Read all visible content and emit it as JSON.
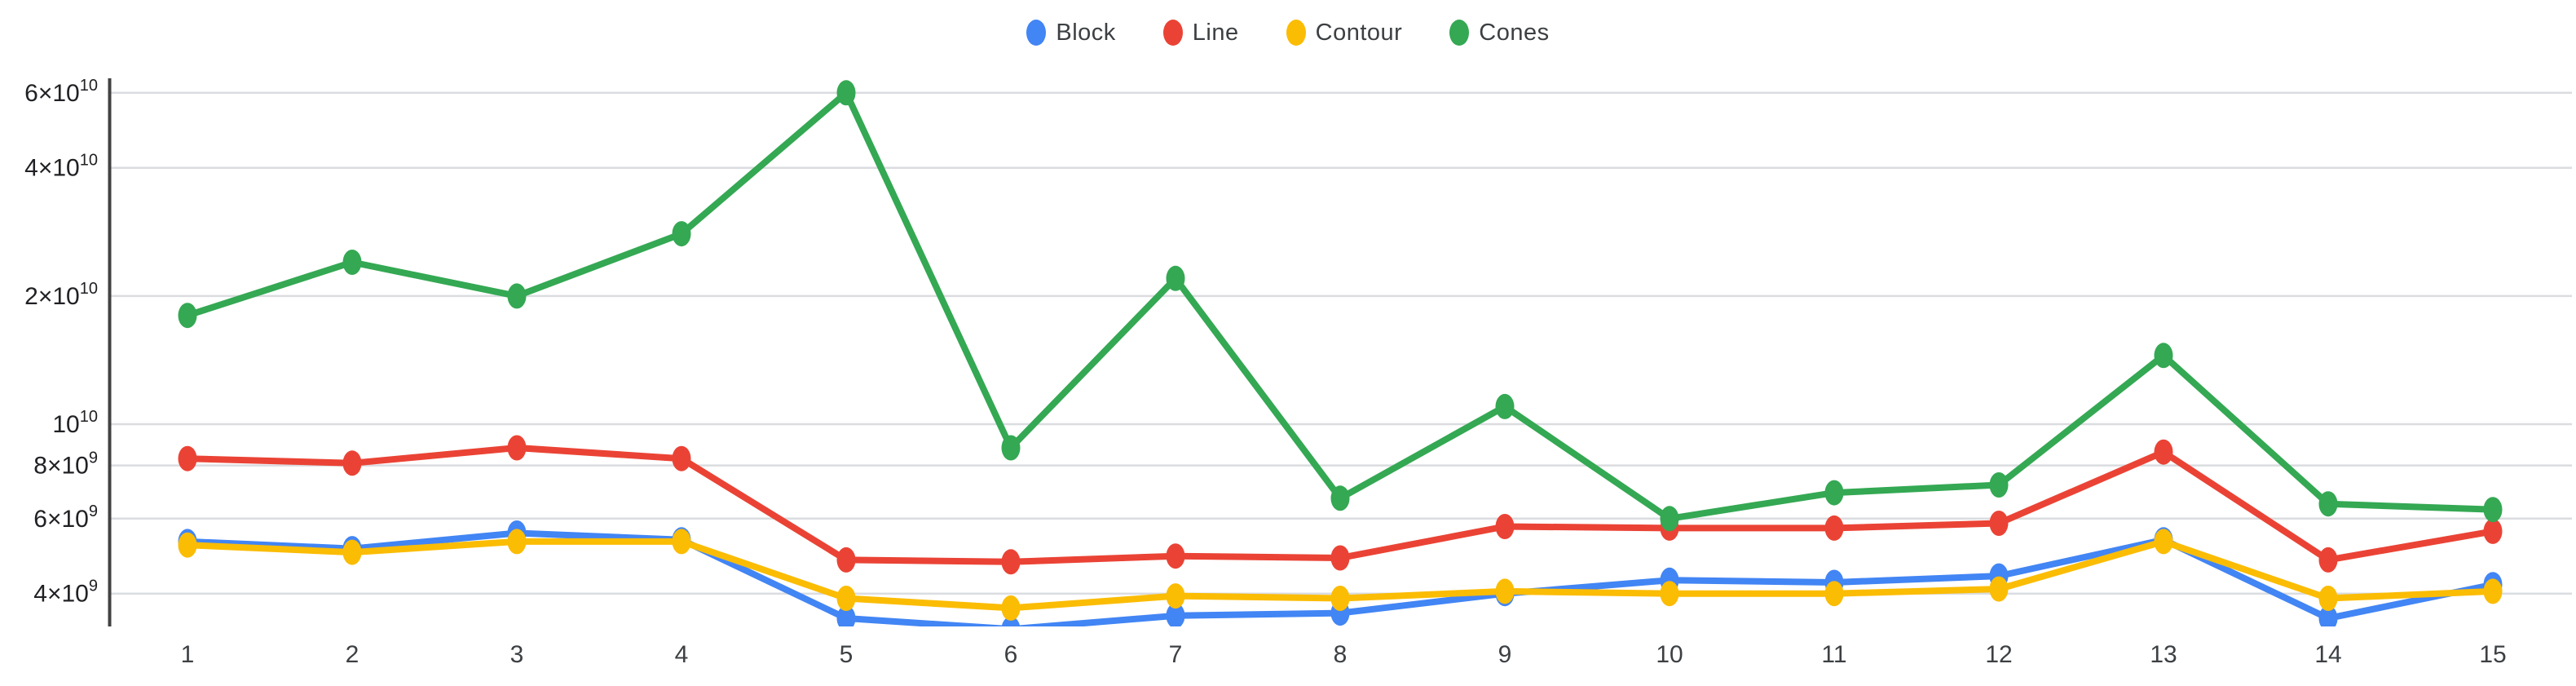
{
  "chart_data": {
    "type": "line",
    "title": "",
    "xlabel": "",
    "ylabel": "",
    "x": [
      1,
      2,
      3,
      4,
      5,
      6,
      7,
      8,
      9,
      10,
      11,
      12,
      13,
      14,
      15
    ],
    "x_tick_labels": [
      "1",
      "2",
      "3",
      "4",
      "5",
      "6",
      "7",
      "8",
      "9",
      "10",
      "11",
      "12",
      "13",
      "14",
      "15"
    ],
    "series": [
      {
        "name": "Block",
        "color": "#4285F4",
        "values": [
          5300000000.0,
          5100000000.0,
          5550000000.0,
          5350000000.0,
          3500000000.0,
          3300000000.0,
          3550000000.0,
          3600000000.0,
          4000000000.0,
          4300000000.0,
          4250000000.0,
          4400000000.0,
          5350000000.0,
          3500000000.0,
          4200000000.0
        ]
      },
      {
        "name": "Line",
        "color": "#EA4335",
        "values": [
          8300000000.0,
          8100000000.0,
          8800000000.0,
          8300000000.0,
          4800000000.0,
          4750000000.0,
          4900000000.0,
          4850000000.0,
          5750000000.0,
          5700000000.0,
          5700000000.0,
          5850000000.0,
          8600000000.0,
          4800000000.0,
          5600000000.0
        ]
      },
      {
        "name": "Contour",
        "color": "#FBBC04",
        "values": [
          5200000000.0,
          5000000000.0,
          5300000000.0,
          5300000000.0,
          3900000000.0,
          3700000000.0,
          3950000000.0,
          3900000000.0,
          4050000000.0,
          4000000000.0,
          4000000000.0,
          4100000000.0,
          5300000000.0,
          3900000000.0,
          4050000000.0
        ]
      },
      {
        "name": "Cones",
        "color": "#34A853",
        "values": [
          18000000000.0,
          24000000000.0,
          20000000000.0,
          28000000000.0,
          60000000000.0,
          8800000000.0,
          22000000000.0,
          6700000000.0,
          11000000000.0,
          6000000000.0,
          6900000000.0,
          7200000000.0,
          14500000000.0,
          6500000000.0,
          6300000000.0
        ]
      }
    ],
    "y_axis": {
      "scale": "log",
      "ticks": [
        {
          "value": 4000000000.0,
          "mantissa": "4×10",
          "exponent": "9"
        },
        {
          "value": 6000000000.0,
          "mantissa": "6×10",
          "exponent": "9"
        },
        {
          "value": 8000000000.0,
          "mantissa": "8×10",
          "exponent": "9"
        },
        {
          "value": 10000000000.0,
          "mantissa": "10",
          "exponent": "10"
        },
        {
          "value": 20000000000.0,
          "mantissa": "2×10",
          "exponent": "10"
        },
        {
          "value": 40000000000.0,
          "mantissa": "4×10",
          "exponent": "10"
        },
        {
          "value": 60000000000.0,
          "mantissa": "6×10",
          "exponent": "10"
        }
      ]
    },
    "legend_position": "top-center",
    "grid": true,
    "colors": {
      "background": "#ffffff",
      "gridline": "#dadce0",
      "axis_line": "#424242",
      "tick_label": "#3c4043",
      "legend_label": "#3c4043"
    }
  },
  "legend": {
    "items": [
      {
        "label": "Block",
        "color": "#4285F4"
      },
      {
        "label": "Line",
        "color": "#EA4335"
      },
      {
        "label": "Contour",
        "color": "#FBBC04"
      },
      {
        "label": "Cones",
        "color": "#34A853"
      }
    ]
  }
}
